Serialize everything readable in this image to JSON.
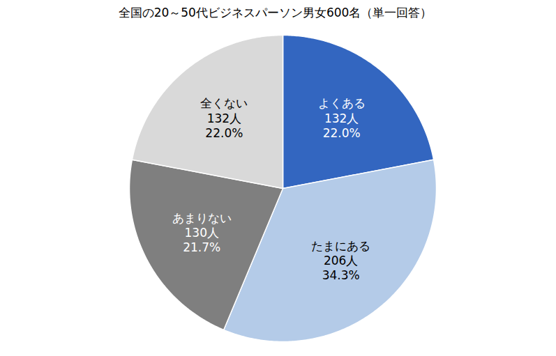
{
  "chart_data": {
    "type": "pie",
    "title": "全国の20～50代ビジネスパーソン男女600名（単一回答）",
    "categories": [
      "よくある",
      "たまにある",
      "あまりない",
      "全くない"
    ],
    "values": [
      22.0,
      34.3,
      21.7,
      22.0
    ],
    "value_labels": [
      "22.0%",
      "34.3%",
      "21.7%",
      "22.0%"
    ],
    "count_labels": [
      "132人",
      "206人",
      "130人",
      "132人"
    ],
    "colors": [
      "#3366c0",
      "#b4cbe8",
      "#7f7f7f",
      "#d9d9d9"
    ],
    "data_labels": true
  }
}
